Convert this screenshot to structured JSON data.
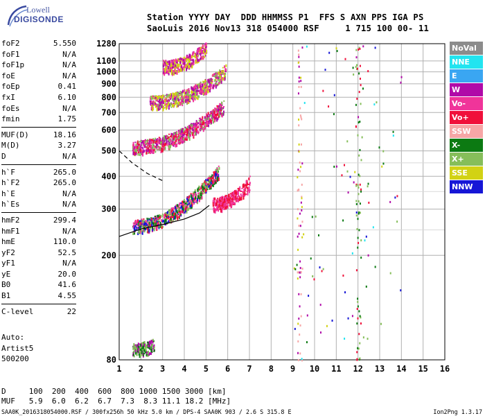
{
  "logo": {
    "line1": "Lowell",
    "line2": "DIGISONDE"
  },
  "header": {
    "line1": "Station YYYY DAY  DDD HHMMSS P1  FFS S AXN PPS IGA PS",
    "line2": "SaoLuis 2016 Nov13 318 054000 RSF     1 715 100 00- 11"
  },
  "params": [
    {
      "name": "foF2",
      "value": "5.550"
    },
    {
      "name": "foF1",
      "value": "N/A"
    },
    {
      "name": "foF1p",
      "value": "N/A"
    },
    {
      "name": "foE",
      "value": "N/A"
    },
    {
      "name": "foEp",
      "value": "0.41"
    },
    {
      "name": "fxI",
      "value": "6.10"
    },
    {
      "name": "foEs",
      "value": "N/A"
    },
    {
      "name": "fmin",
      "value": "1.75"
    },
    {
      "sep": true
    },
    {
      "name": "MUF(D)",
      "value": "18.16"
    },
    {
      "name": "M(D)",
      "value": "3.27"
    },
    {
      "name": "D",
      "value": "N/A"
    },
    {
      "sep": true
    },
    {
      "name": "h`F",
      "value": "265.0"
    },
    {
      "name": "h`F2",
      "value": "265.0"
    },
    {
      "name": "h`E",
      "value": "N/A"
    },
    {
      "name": "h`Es",
      "value": "N/A"
    },
    {
      "sep": true
    },
    {
      "name": "hmF2",
      "value": "299.4"
    },
    {
      "name": "hmF1",
      "value": "N/A"
    },
    {
      "name": "hmE",
      "value": "110.0"
    },
    {
      "name": "yF2",
      "value": "52.5"
    },
    {
      "name": "yF1",
      "value": "N/A"
    },
    {
      "name": "yE",
      "value": "20.0"
    },
    {
      "name": "B0",
      "value": "41.6"
    },
    {
      "name": "B1",
      "value": "4.55"
    },
    {
      "sep": true
    },
    {
      "name": "C-level",
      "value": "22"
    }
  ],
  "auto": {
    "label": "Auto:",
    "artist": "Artist5",
    "code": "500200"
  },
  "footer": {
    "d_row": "D     100  200  400  600  800 1000 1500 3000 [km]",
    "muf_row": "MUF   5.9  6.0  6.2  6.7  7.3  8.3 11.1 18.2 [MHz]",
    "file": "SAA0K_2016318054000.RSF / 300fx256h 50 kHz 5.0 km / DPS-4 SAA0K 903 / 2.6 S 315.8 E",
    "version": "Ion2Png 1.3.17"
  },
  "legend": [
    {
      "label": "NoVal",
      "color": "#8c8c8c"
    },
    {
      "label": "NNE",
      "color": "#22e4f0"
    },
    {
      "label": "E",
      "color": "#3aa6f2"
    },
    {
      "label": "W",
      "color": "#b00aa8"
    },
    {
      "label": "Vo-",
      "color": "#f0349a"
    },
    {
      "label": "Vo+",
      "color": "#f0103a"
    },
    {
      "label": "SSW",
      "color": "#f7a6a6"
    },
    {
      "label": "X-",
      "color": "#0c7a12"
    },
    {
      "label": "X+",
      "color": "#86be5a"
    },
    {
      "label": "SSE",
      "color": "#d2d214"
    },
    {
      "label": "NNW",
      "color": "#1616d6"
    }
  ],
  "chart_data": {
    "type": "scatter",
    "xlabel": "",
    "ylabel": "",
    "xlim": [
      1,
      16
    ],
    "ylim": [
      80,
      1280
    ],
    "x_ticks": [
      1,
      2,
      3,
      4,
      5,
      6,
      7,
      8,
      9,
      10,
      11,
      12,
      13,
      14,
      15,
      16
    ],
    "y_ticks": [
      80,
      200,
      300,
      400,
      500,
      600,
      700,
      800,
      900,
      1000,
      1100,
      1280
    ],
    "y_scale": "log",
    "grid": true,
    "echo_traces": [
      {
        "name": "F2 trace 1st hop",
        "f_from": 1.6,
        "f_to": 5.6,
        "h_from": 260,
        "h_to": 420,
        "colors": [
          "#f0103a",
          "#1616d6",
          "#0c7a12",
          "#86be5a",
          "#f0349a"
        ]
      },
      {
        "name": "F2 trace 2nd hop",
        "f_from": 1.6,
        "f_to": 5.8,
        "h_from": 520,
        "h_to": 740,
        "colors": [
          "#b00aa8",
          "#f0349a",
          "#f0103a",
          "#86be5a"
        ]
      },
      {
        "name": "F2 trace 3rd hop",
        "f_from": 2.4,
        "f_to": 5.9,
        "h_from": 770,
        "h_to": 1010,
        "colors": [
          "#b00aa8",
          "#f0349a",
          "#86be5a",
          "#d2d214"
        ]
      },
      {
        "name": "F2 trace 4th hop",
        "f_from": 3.0,
        "f_to": 5.0,
        "h_from": 1050,
        "h_to": 1240,
        "colors": [
          "#b00aa8",
          "#f0349a",
          "#d2d214"
        ]
      },
      {
        "name": "Es/oblique 2nd",
        "f_from": 5.3,
        "f_to": 7.0,
        "h_from": 315,
        "h_to": 380,
        "colors": [
          "#f0103a",
          "#f0349a"
        ]
      },
      {
        "name": "Low echoes",
        "f_from": 1.6,
        "f_to": 2.6,
        "h_from": 88,
        "h_to": 92,
        "colors": [
          "#0c7a12",
          "#b00aa8",
          "#86be5a"
        ]
      }
    ],
    "vertical_bands": [
      {
        "name": "9.3 MHz interference",
        "f": 9.3,
        "colors": [
          "#d2d214",
          "#f7a6a6",
          "#b00aa8"
        ]
      },
      {
        "name": "12.0 MHz interference",
        "f": 12.0,
        "colors": [
          "#86be5a",
          "#0c7a12",
          "#f0103a"
        ]
      }
    ],
    "profile_line": {
      "points": [
        [
          1,
          236
        ],
        [
          2,
          252
        ],
        [
          3,
          262
        ],
        [
          4,
          275
        ],
        [
          4.7,
          290
        ],
        [
          5.15,
          310
        ]
      ]
    },
    "dashed_line": {
      "points": [
        [
          1,
          500
        ],
        [
          1.6,
          450
        ],
        [
          2.3,
          410
        ],
        [
          3,
          385
        ]
      ]
    }
  }
}
